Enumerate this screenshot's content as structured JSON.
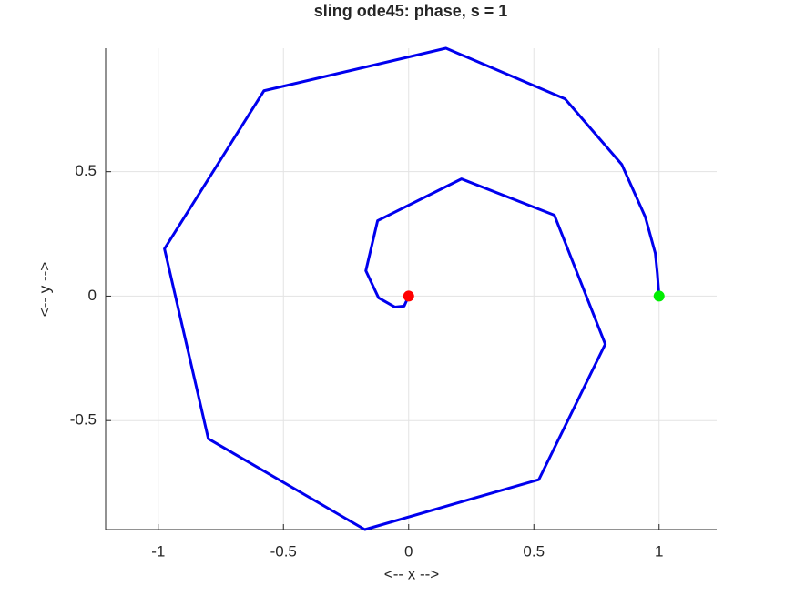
{
  "chart_data": {
    "type": "line",
    "title": "sling ode45: phase, s = 1",
    "xlabel": "<-- x -->",
    "ylabel": "<-- y -->",
    "x": [
      1,
      0.993,
      0.985,
      0.945,
      0.851,
      0.625,
      0.149,
      -0.578,
      -0.975,
      -0.8,
      -0.175,
      0.52,
      0.785,
      0.582,
      0.211,
      -0.124,
      -0.171,
      -0.12,
      -0.055,
      -0.018,
      0
    ],
    "series": [
      {
        "color": "#0000ee",
        "values": [
          0,
          0.091,
          0.172,
          0.318,
          0.529,
          0.792,
          0.996,
          0.825,
          0.19,
          -0.573,
          -0.938,
          -0.737,
          -0.193,
          0.325,
          0.471,
          0.303,
          0.102,
          -0.007,
          -0.044,
          -0.04,
          0
        ]
      }
    ],
    "markers": [
      {
        "x": 1,
        "y": 0,
        "color": "#00ee00"
      },
      {
        "x": 0,
        "y": 0,
        "color": "#ff0000"
      }
    ],
    "xlim": [
      -1.21,
      1.23
    ],
    "ylim": [
      -0.938,
      0.996
    ],
    "xticks": [
      -1,
      -0.5,
      0,
      0.5,
      1
    ],
    "yticks": [
      -0.5,
      0,
      0.5
    ],
    "grid": true
  }
}
